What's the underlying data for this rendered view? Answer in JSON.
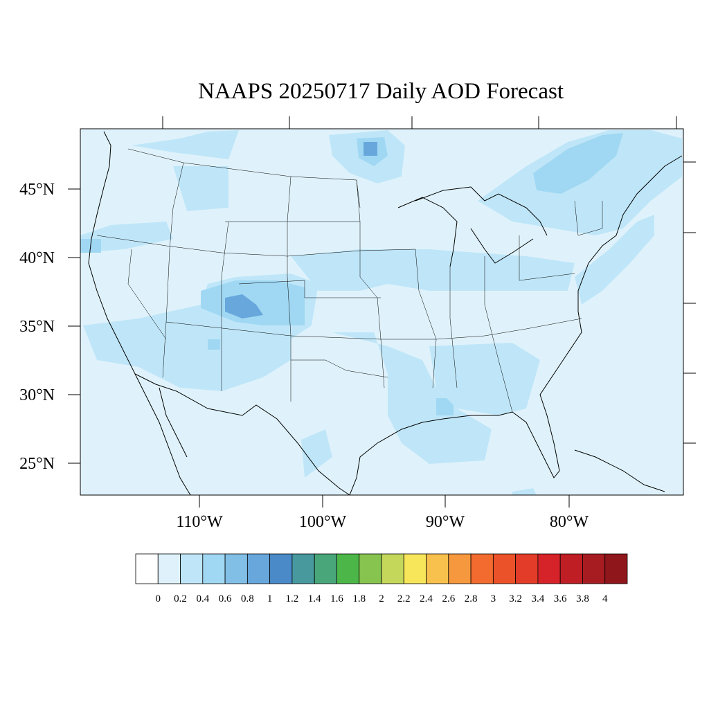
{
  "title": "NAAPS 20250717 Daily AOD Forecast",
  "map": {
    "projection": "lambert-like",
    "lon_labels": [
      "110°W",
      "100°W",
      "90°W",
      "80°W"
    ],
    "lat_labels": [
      "45°N",
      "40°N",
      "35°N",
      "30°N",
      "25°N"
    ],
    "lon_range": [
      -120,
      -70
    ],
    "lat_range": [
      22,
      50
    ]
  },
  "colorbar": {
    "labels": [
      "0",
      "0.2",
      "0.4",
      "0.6",
      "0.8",
      "1",
      "1.2",
      "1.4",
      "1.6",
      "1.8",
      "2",
      "2.2",
      "2.4",
      "2.6",
      "2.8",
      "3",
      "3.2",
      "3.4",
      "3.6",
      "3.8",
      "4"
    ],
    "colors": [
      "#ffffff",
      "#dff2fb",
      "#bfe6f8",
      "#a0d8f3",
      "#82bfe6",
      "#67a7dc",
      "#4a8ac8",
      "#48999e",
      "#48a67a",
      "#4cb748",
      "#86c44f",
      "#c5d75a",
      "#f7e65a",
      "#f8c04c",
      "#f6983e",
      "#f36b2e",
      "#ec5229",
      "#e33c28",
      "#d62229",
      "#bf1e25",
      "#a71c21",
      "#8f161b"
    ]
  },
  "aod_field": {
    "background_level": 0.1,
    "plumes": [
      {
        "region": "Colorado",
        "level": 1.0
      },
      {
        "region": "Lake Superior",
        "level": 0.8
      },
      {
        "region": "Ontario / Quebec",
        "level": 0.5
      },
      {
        "region": "Southwest",
        "level": 0.4
      },
      {
        "region": "Gulf Coast",
        "level": 0.3
      }
    ]
  }
}
